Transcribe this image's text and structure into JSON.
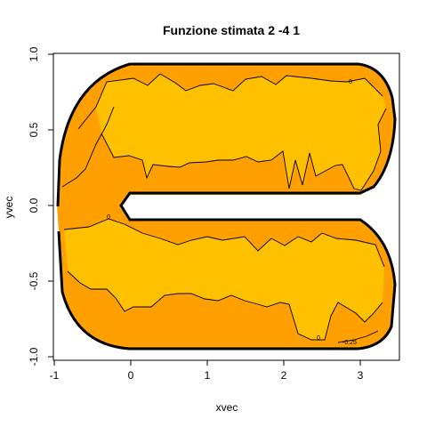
{
  "chart_data": {
    "type": "heatmap",
    "title": "Funzione stimata 2 -4 1",
    "xlabel": "xvec",
    "ylabel": "yvec",
    "xlim": [
      -1.0,
      3.5
    ],
    "ylim": [
      -1.0,
      1.0
    ],
    "x_ticks": [
      "-1",
      "0",
      "1",
      "2",
      "3"
    ],
    "y_ticks": [
      "-1.0",
      "-0.5",
      "0.0",
      "0.5",
      "1.0"
    ],
    "contour_labels": [
      "0",
      "0",
      "0",
      "-0.25"
    ],
    "grid": false,
    "colors": {
      "outer_band": "#FFA000",
      "inner_band": "#FFC000",
      "boundary": "#000000",
      "contour": "#000000"
    }
  }
}
